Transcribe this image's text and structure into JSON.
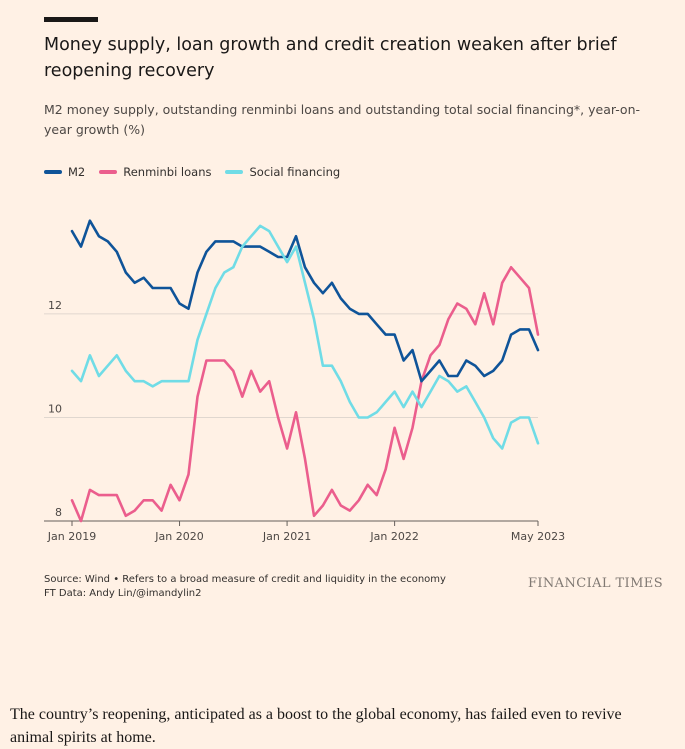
{
  "header": {
    "title": "Money supply, loan growth and credit creation weaken after brief reopening recovery",
    "subtitle": "M2 money supply, outstanding renminbi loans and outstanding total social financing*, year-on-year growth (%)"
  },
  "colors": {
    "background": "#fff1e5",
    "m2": "#0f5499",
    "loans": "#eb5e8d",
    "social": "#70dce6",
    "grid": "#e0d7cf",
    "axis": "#66605c"
  },
  "chart_data": {
    "type": "line",
    "title": "Money supply, loan growth and credit creation weaken after brief reopening recovery",
    "ylabel": "year-on-year growth (%)",
    "xlabel": "",
    "ylim": [
      8,
      14.2
    ],
    "yticks": [
      8,
      10,
      12
    ],
    "xlim": [
      0,
      52
    ],
    "xticks": [
      {
        "x": 0,
        "label": "Jan 2019"
      },
      {
        "x": 12,
        "label": "Jan 2020"
      },
      {
        "x": 24,
        "label": "Jan 2021"
      },
      {
        "x": 36,
        "label": "Jan 2022"
      },
      {
        "x": 52,
        "label": "May 2023"
      }
    ],
    "x_unit": "months since Jan 2019",
    "series": [
      {
        "key": "loans",
        "name": "Renminbi loans",
        "values": [
          8.4,
          8.0,
          8.6,
          8.5,
          8.5,
          8.5,
          8.1,
          8.2,
          8.4,
          8.4,
          8.2,
          8.7,
          8.4,
          8.9,
          10.4,
          11.1,
          11.1,
          11.1,
          10.9,
          10.4,
          10.9,
          10.5,
          10.7,
          10.0,
          9.4,
          10.1,
          9.2,
          8.1,
          8.3,
          8.6,
          8.3,
          8.2,
          8.4,
          8.7,
          8.5,
          9.0,
          9.8,
          9.2,
          9.8,
          10.7,
          11.2,
          11.4,
          11.9,
          12.2,
          12.1,
          11.8,
          12.4,
          11.8,
          12.6,
          12.9,
          12.7,
          12.5,
          11.6
        ]
      },
      {
        "key": "m2",
        "name": "M2",
        "values": [
          13.6,
          13.3,
          13.8,
          13.5,
          13.4,
          13.2,
          12.8,
          12.6,
          12.7,
          12.5,
          12.5,
          12.5,
          12.2,
          12.1,
          12.8,
          13.2,
          13.4,
          13.4,
          13.4,
          13.3,
          13.3,
          13.3,
          13.2,
          13.1,
          13.1,
          13.5,
          12.9,
          12.6,
          12.4,
          12.6,
          12.3,
          12.1,
          12.0,
          12.0,
          11.8,
          11.6,
          11.6,
          11.1,
          11.3,
          10.7,
          10.9,
          11.1,
          10.8,
          10.8,
          11.1,
          11.0,
          10.8,
          10.9,
          11.1,
          11.6,
          11.7,
          11.7,
          11.3
        ]
      },
      {
        "key": "social",
        "name": "Social financing",
        "values": [
          10.9,
          10.7,
          11.2,
          10.8,
          11.0,
          11.2,
          10.9,
          10.7,
          10.7,
          10.6,
          10.7,
          10.7,
          10.7,
          10.7,
          11.5,
          12.0,
          12.5,
          12.8,
          12.9,
          13.3,
          13.5,
          13.7,
          13.6,
          13.3,
          13.0,
          13.3,
          12.6,
          11.9,
          11.0,
          11.0,
          10.7,
          10.3,
          10.0,
          10.0,
          10.1,
          10.3,
          10.5,
          10.2,
          10.5,
          10.2,
          10.5,
          10.8,
          10.7,
          10.5,
          10.6,
          10.3,
          10.0,
          9.6,
          9.4,
          9.9,
          10.0,
          10.0,
          9.5
        ]
      }
    ]
  },
  "footer": {
    "source": "Source: Wind • Refers to a broad measure of credit and liquidity in the economy",
    "credit": "FT Data: Andy Lin/@imandylin2",
    "brand": "FINANCIAL TIMES"
  },
  "article": {
    "caption": "The country’s reopening, anticipated as a boost to the global economy, has failed even to revive animal spirits at home."
  }
}
